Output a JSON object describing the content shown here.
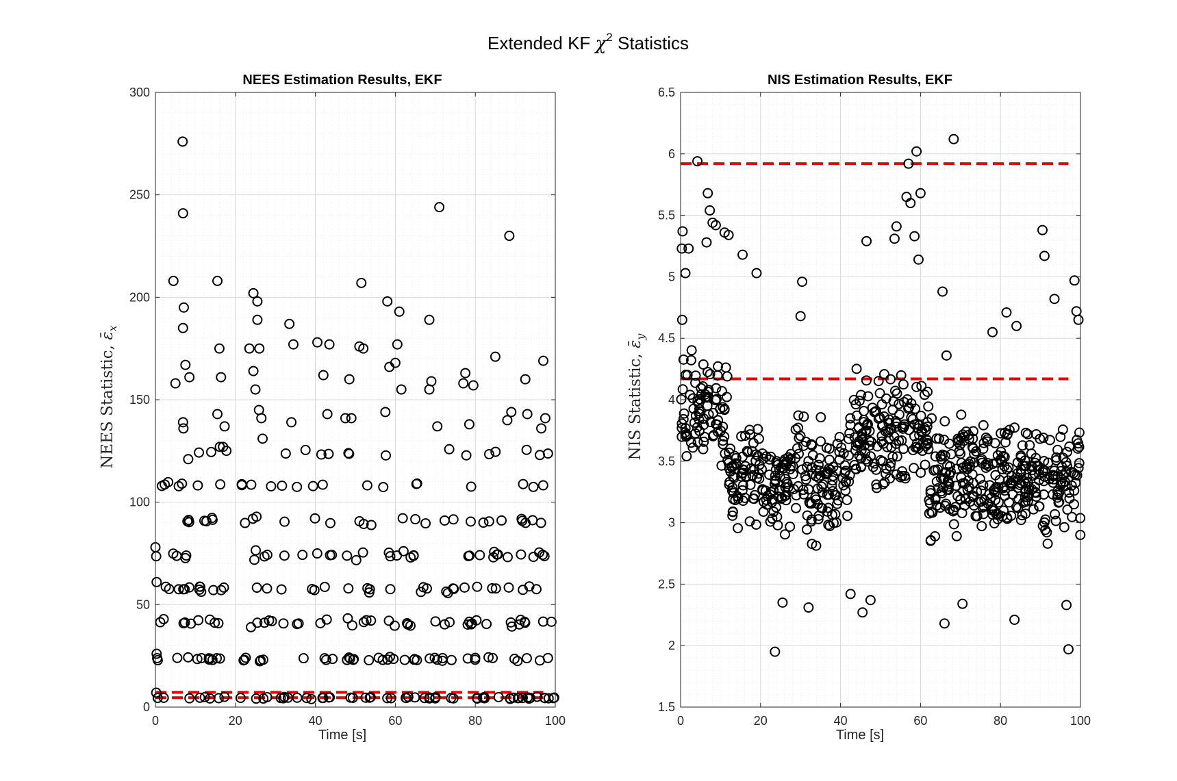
{
  "figure": {
    "title_prefix": "Extended KF ",
    "title_symbol": "χ",
    "title_superscript": "2",
    "title_suffix": " Statistics"
  },
  "colors": {
    "marker": "#000000",
    "bound": "#e60000",
    "grid_major": "#d9d9d9",
    "grid_minor": "#ececec",
    "axis": "#262626"
  },
  "chart_data": [
    {
      "type": "scatter",
      "title": "NEES Estimation Results, EKF",
      "xlabel": "Time [s]",
      "ylabel_text": "NEES Statistic, ",
      "ylabel_symbol": "ε̄",
      "ylabel_subscript": "x",
      "xlim": [
        0,
        100
      ],
      "ylim": [
        0,
        300
      ],
      "xticks": [
        0,
        20,
        40,
        60,
        80,
        100
      ],
      "yticks": [
        0,
        50,
        100,
        150,
        200,
        250,
        300
      ],
      "ytick_labels": [
        "0",
        "50",
        "100",
        "150",
        "200",
        "250",
        "300"
      ],
      "grid": true,
      "minor_grid": true,
      "bounds": [
        4.6,
        7.2
      ],
      "bounds_xrange": [
        0,
        97
      ],
      "bands": [
        {
          "center": 4.5,
          "spread": 0.8
        },
        {
          "center": 23.5,
          "spread": 1.5
        },
        {
          "center": 41,
          "spread": 2.5
        },
        {
          "center": 58,
          "spread": 2.5
        },
        {
          "center": 74,
          "spread": 3
        },
        {
          "center": 91,
          "spread": 2.5
        },
        {
          "center": 108.5,
          "spread": 2
        },
        {
          "center": 124,
          "spread": 3
        }
      ],
      "outliers": [
        [
          0,
          78
        ],
        [
          0.3,
          61
        ],
        [
          0.3,
          26
        ],
        [
          0.2,
          7
        ],
        [
          6.8,
          276
        ],
        [
          6.9,
          241
        ],
        [
          7.1,
          195
        ],
        [
          6.9,
          185
        ],
        [
          7.5,
          167
        ],
        [
          8.5,
          161
        ],
        [
          4.5,
          208
        ],
        [
          5.0,
          158
        ],
        [
          6.9,
          139
        ],
        [
          7.0,
          136
        ],
        [
          8.2,
          121
        ],
        [
          15.5,
          208
        ],
        [
          16.0,
          175
        ],
        [
          16.4,
          161
        ],
        [
          15.5,
          143
        ],
        [
          17.3,
          137
        ],
        [
          16.1,
          127
        ],
        [
          16.9,
          127
        ],
        [
          24.5,
          202
        ],
        [
          25.5,
          198
        ],
        [
          25.5,
          189
        ],
        [
          26.0,
          175
        ],
        [
          24.5,
          164
        ],
        [
          25.0,
          155
        ],
        [
          25.9,
          145
        ],
        [
          26.5,
          141
        ],
        [
          26.8,
          131
        ],
        [
          23.5,
          175
        ],
        [
          33.5,
          187
        ],
        [
          34.5,
          177
        ],
        [
          34.0,
          139
        ],
        [
          40.5,
          178
        ],
        [
          42.0,
          162
        ],
        [
          43.5,
          177
        ],
        [
          43.0,
          143
        ],
        [
          48.5,
          160
        ],
        [
          51.0,
          176
        ],
        [
          52.0,
          175
        ],
        [
          51.5,
          207
        ],
        [
          49.0,
          141
        ],
        [
          47.5,
          141
        ],
        [
          58.0,
          198
        ],
        [
          60.5,
          177
        ],
        [
          61.5,
          155
        ],
        [
          58.5,
          166
        ],
        [
          57.5,
          144
        ],
        [
          60.0,
          168
        ],
        [
          61.0,
          193
        ],
        [
          68.5,
          189
        ],
        [
          69.0,
          159
        ],
        [
          70.5,
          137
        ],
        [
          71.0,
          244
        ],
        [
          68.5,
          155
        ],
        [
          77.0,
          158
        ],
        [
          77.5,
          163
        ],
        [
          78.5,
          138
        ],
        [
          79.5,
          157
        ],
        [
          85.0,
          171
        ],
        [
          88.5,
          230
        ],
        [
          89.0,
          144
        ],
        [
          88.0,
          140
        ],
        [
          92.5,
          160
        ],
        [
          93.0,
          143
        ],
        [
          96.5,
          136
        ],
        [
          97.5,
          141
        ],
        [
          97.0,
          169
        ]
      ],
      "gaps": [
        [
          18,
          21
        ],
        [
          28,
          31
        ],
        [
          45.5,
          47.5
        ],
        [
          54,
          56
        ],
        [
          65.5,
          67.5
        ],
        [
          75,
          77.5
        ],
        [
          86,
          88
        ]
      ]
    },
    {
      "type": "scatter",
      "title": "NIS Estimation Results, EKF",
      "xlabel": "Time [s]",
      "ylabel_text": "NIS Statistic, ",
      "ylabel_symbol": "ε̄",
      "ylabel_subscript": "y",
      "xlim": [
        0,
        100
      ],
      "ylim": [
        1.5,
        6.5
      ],
      "xticks": [
        0,
        20,
        40,
        60,
        80,
        100
      ],
      "yticks": [
        1.5,
        2,
        2.5,
        3,
        3.5,
        4,
        4.5,
        5,
        5.5,
        6,
        6.5
      ],
      "ytick_labels": [
        "1.5",
        "2",
        "2.5",
        "3",
        "3.5",
        "4",
        "4.5",
        "5",
        "5.5",
        "6",
        "6.5"
      ],
      "grid": true,
      "minor_grid": true,
      "bounds": [
        4.17,
        5.92
      ],
      "bounds_xrange": [
        0,
        97
      ],
      "outliers": [
        [
          4.2,
          5.94
        ],
        [
          0.5,
          5.37
        ],
        [
          0.3,
          5.23
        ],
        [
          2.0,
          5.23
        ],
        [
          0.4,
          4.65
        ],
        [
          1.2,
          5.03
        ],
        [
          6.8,
          5.68
        ],
        [
          7.3,
          5.54
        ],
        [
          8.0,
          5.44
        ],
        [
          8.8,
          5.42
        ],
        [
          11.0,
          5.36
        ],
        [
          12.0,
          5.34
        ],
        [
          6.5,
          5.28
        ],
        [
          15.5,
          5.18
        ],
        [
          19.0,
          5.03
        ],
        [
          23.6,
          1.95
        ],
        [
          25.5,
          2.35
        ],
        [
          32.0,
          2.31
        ],
        [
          30.4,
          4.96
        ],
        [
          30.0,
          4.68
        ],
        [
          45.5,
          2.27
        ],
        [
          46.5,
          5.29
        ],
        [
          47.5,
          2.37
        ],
        [
          42.5,
          2.42
        ],
        [
          54.0,
          5.41
        ],
        [
          53.5,
          5.31
        ],
        [
          56.5,
          5.65
        ],
        [
          57.0,
          5.92
        ],
        [
          57.5,
          5.6
        ],
        [
          59.0,
          6.02
        ],
        [
          60.0,
          5.68
        ],
        [
          59.5,
          5.14
        ],
        [
          58.5,
          5.33
        ],
        [
          66.0,
          2.18
        ],
        [
          68.3,
          6.12
        ],
        [
          70.5,
          2.34
        ],
        [
          65.5,
          4.88
        ],
        [
          66.5,
          4.36
        ],
        [
          81.5,
          4.71
        ],
        [
          84.0,
          4.6
        ],
        [
          83.5,
          2.21
        ],
        [
          78.0,
          4.55
        ],
        [
          90.5,
          5.38
        ],
        [
          91.0,
          5.17
        ],
        [
          93.5,
          4.82
        ],
        [
          97.0,
          1.97
        ],
        [
          98.5,
          4.97
        ],
        [
          99.0,
          4.72
        ],
        [
          99.5,
          4.65
        ],
        [
          96.5,
          2.33
        ]
      ]
    }
  ]
}
